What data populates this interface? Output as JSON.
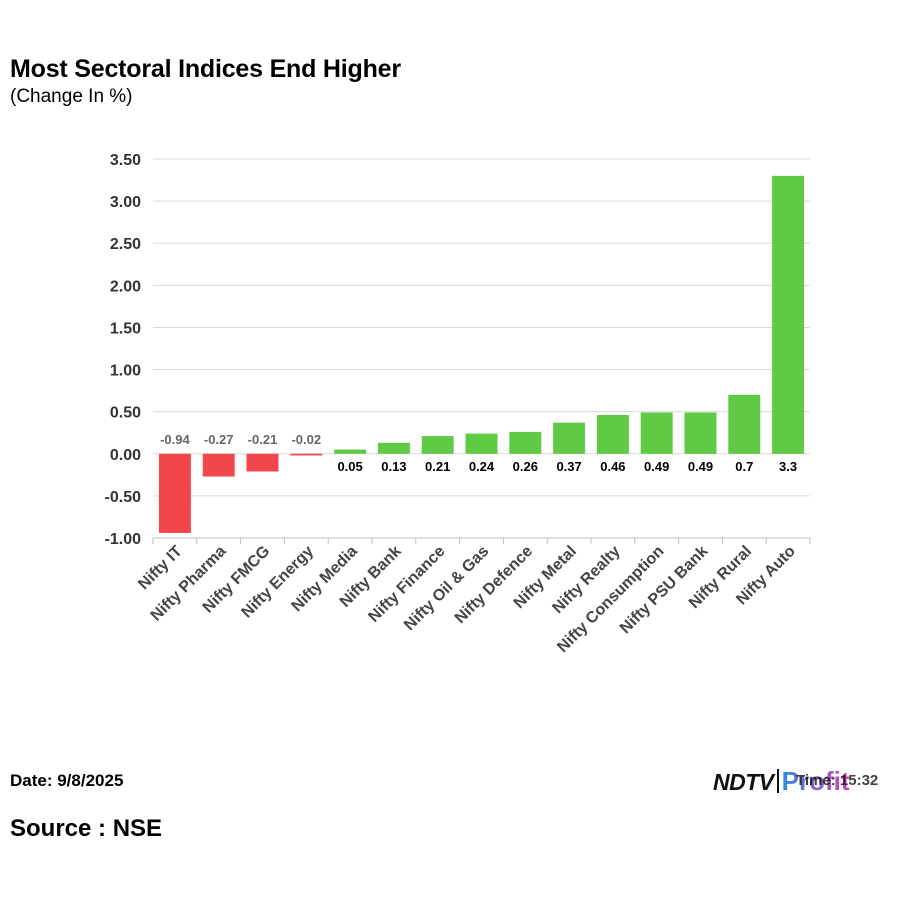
{
  "chart_data": {
    "type": "bar",
    "title": "Most Sectoral Indices End Higher",
    "subtitle": "(Change In %)",
    "categories": [
      "Nifty IT",
      "Nifty Pharma",
      "Nifty FMCG",
      "Nifty Energy",
      "Nifty Media",
      "Nifty Bank",
      "Nifty Finance",
      "Nifty Oil & Gas",
      "Nifty Defence",
      "Nifty Metal",
      "Nifty Realty",
      "Nifty Consumption",
      "Nifty PSU Bank",
      "Nifty Rural",
      "Nifty Auto"
    ],
    "values": [
      -0.94,
      -0.27,
      -0.21,
      -0.02,
      0.05,
      0.13,
      0.21,
      0.24,
      0.26,
      0.37,
      0.46,
      0.49,
      0.49,
      0.7,
      3.3
    ],
    "value_labels": [
      "-0.94",
      "-0.27",
      "-0.21",
      "-0.02",
      "0.05",
      "0.13",
      "0.21",
      "0.24",
      "0.26",
      "0.37",
      "0.46",
      "0.49",
      "0.49",
      "0.7",
      "3.3"
    ],
    "y_ticks": [
      "3.50",
      "3.00",
      "2.50",
      "2.00",
      "1.50",
      "1.00",
      "0.50",
      "0.00",
      "-0.50",
      "-1.00"
    ],
    "ylim": [
      -1.0,
      3.5
    ],
    "xlabel": "",
    "ylabel": "",
    "grid": true,
    "colors": {
      "positive": "#5fcb45",
      "negative": "#f2474a",
      "grid": "#d9d9d9"
    }
  },
  "footer": {
    "date": "Date: 9/8/2025",
    "source": "Source : NSE",
    "brand_ndtv": "NDTV",
    "brand_profit": "Profit",
    "time": "Time: 15:32"
  }
}
